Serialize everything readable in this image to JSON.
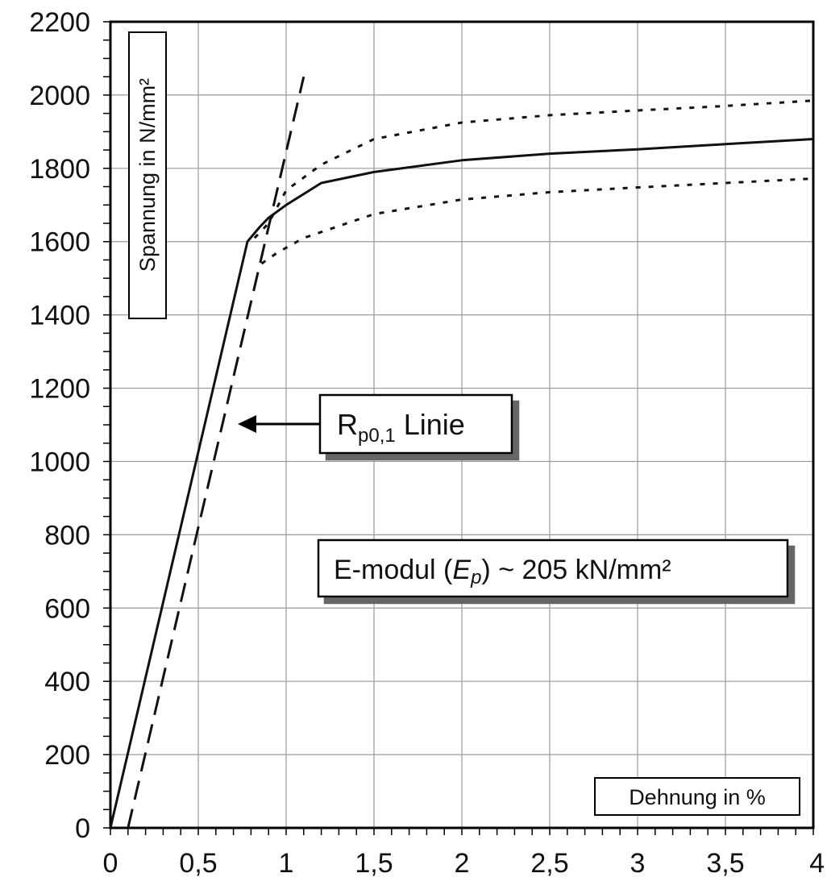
{
  "chart_data": {
    "type": "line",
    "title": "",
    "xlabel": "Dehnung in %",
    "ylabel": "Spannung in N/mm²",
    "xlim": [
      0,
      4
    ],
    "ylim": [
      0,
      2200
    ],
    "x_ticks": [
      "0",
      "0,5",
      "1",
      "1,5",
      "2",
      "2,5",
      "3",
      "3,5",
      "4"
    ],
    "y_ticks": [
      "0",
      "200",
      "400",
      "600",
      "800",
      "1000",
      "1200",
      "1400",
      "1600",
      "1800",
      "2000",
      "2200"
    ],
    "grid": true,
    "series": [
      {
        "style": "solid",
        "color": "#111111",
        "points": [
          [
            0,
            0
          ],
          [
            0.78,
            1600
          ],
          [
            0.85,
            1640
          ],
          [
            0.9,
            1665
          ],
          [
            1.0,
            1700
          ],
          [
            1.2,
            1760
          ],
          [
            1.5,
            1790
          ],
          [
            2.0,
            1822
          ],
          [
            2.5,
            1840
          ],
          [
            3.0,
            1852
          ],
          [
            3.5,
            1866
          ],
          [
            4.0,
            1880
          ]
        ]
      },
      {
        "style": "dotted",
        "color": "#111111",
        "points": [
          [
            0.82,
            1610
          ],
          [
            0.9,
            1650
          ],
          [
            1.0,
            1740
          ],
          [
            1.2,
            1810
          ],
          [
            1.5,
            1880
          ],
          [
            2.0,
            1925
          ],
          [
            2.5,
            1945
          ],
          [
            3.0,
            1958
          ],
          [
            3.5,
            1970
          ],
          [
            4.0,
            1985
          ]
        ]
      },
      {
        "style": "dotted",
        "color": "#111111",
        "points": [
          [
            0.86,
            1540
          ],
          [
            0.95,
            1570
          ],
          [
            1.1,
            1610
          ],
          [
            1.5,
            1675
          ],
          [
            2.0,
            1715
          ],
          [
            2.5,
            1735
          ],
          [
            3.0,
            1748
          ],
          [
            3.5,
            1760
          ],
          [
            4.0,
            1772
          ]
        ]
      },
      {
        "style": "dashed",
        "color": "#111111",
        "points": [
          [
            0.1,
            0
          ],
          [
            1.1,
            2050
          ]
        ]
      }
    ],
    "annotations": {
      "rp_label_main": "R",
      "rp_label_sub": "p0,1",
      "rp_label_rest": " Linie",
      "rp_arrow_target": [
        0.7,
        1100
      ],
      "emodul_prefix": "E-modul (",
      "emodul_symbol": "E",
      "emodul_symbol_sub": "p",
      "emodul_suffix": ") ~ 205 kN/mm²"
    }
  }
}
